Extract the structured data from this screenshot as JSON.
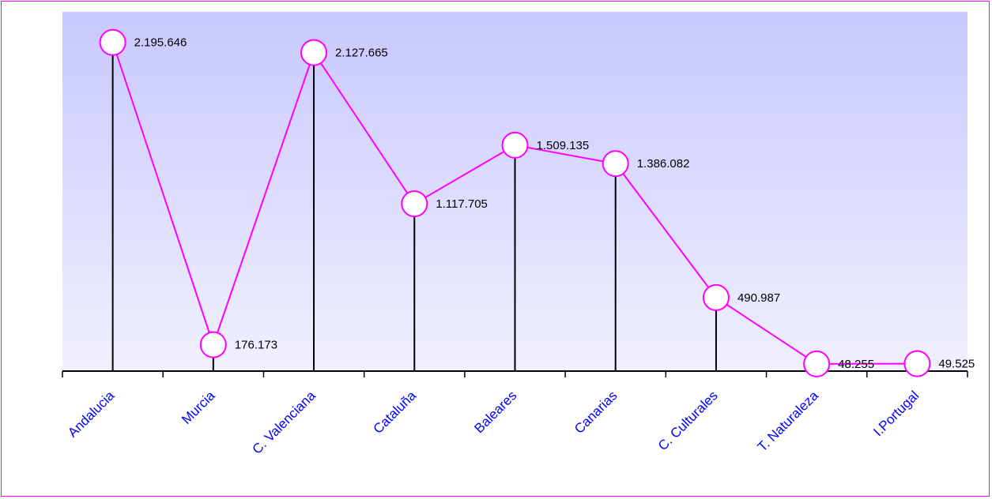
{
  "chart_data": {
    "type": "line",
    "categories": [
      "Andalucia",
      "Murcia",
      "C. Valenciana",
      "Cataluña",
      "Baleares",
      "Canarias",
      "C. Culturales",
      "T. Naturaleza",
      "I.Portugal"
    ],
    "series": [
      {
        "values": [
          2195646,
          176173,
          2127665,
          1117705,
          1509135,
          1386082,
          490987,
          48255,
          49525
        ],
        "labels": [
          "2.195.646",
          "176.173",
          "2.127.665",
          "1.117.705",
          "1.509.135",
          "1.386.082",
          "490.987",
          "48.255",
          "49.525"
        ]
      }
    ],
    "ylim": [
      0,
      2400000
    ],
    "grid": false,
    "colors": {
      "line": "#ff00ff",
      "marker_fill": "#ffffff",
      "drop_lines": "#000000",
      "category_labels": "#0000ff",
      "border": "#ff00ff",
      "plot_bg_top": "#c8c8ff",
      "plot_bg_bottom": "#f0f0ff"
    }
  }
}
